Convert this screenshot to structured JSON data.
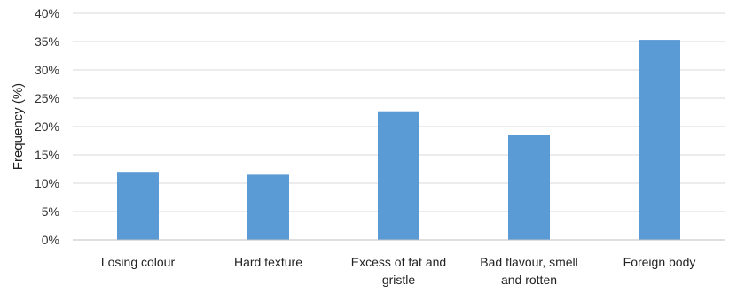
{
  "chart_data": {
    "type": "bar",
    "categories": [
      [
        "Losing colour"
      ],
      [
        "Hard texture"
      ],
      [
        "Excess of fat and",
        "gristle"
      ],
      [
        "Bad flavour, smell",
        "and rotten"
      ],
      [
        "Foreign body"
      ]
    ],
    "values": [
      12.0,
      11.5,
      22.7,
      18.5,
      35.3
    ],
    "ylabel": "Frequency (%)",
    "xlabel": "",
    "ylim": [
      0,
      40
    ],
    "yticks": [
      "0%",
      "5%",
      "10%",
      "15%",
      "20%",
      "25%",
      "30%",
      "35%",
      "40%"
    ],
    "grid": true,
    "legend": "none",
    "bar_color": "#5b9bd5"
  }
}
